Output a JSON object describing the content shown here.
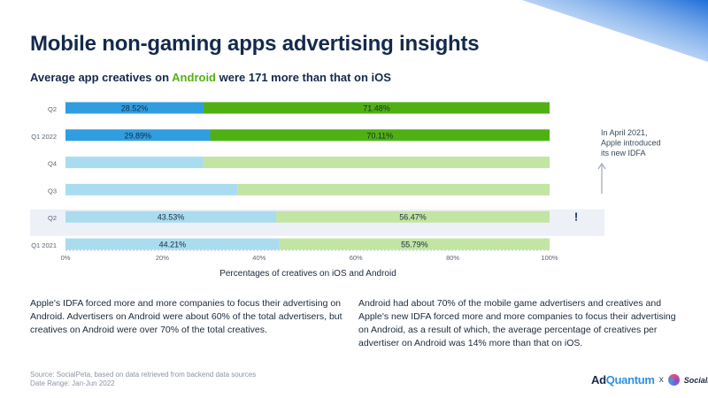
{
  "title": "Mobile non-gaming apps advertising insights",
  "subtitle": {
    "prefix": "Average app creatives on ",
    "accent": "Android",
    "suffix": " were 171 more than that on iOS"
  },
  "colors": {
    "ios_dark": "#2f9ee0",
    "android_dark": "#4fb012",
    "ios_light": "#aadcf0",
    "android_light": "#c2e5a3",
    "highlight_band": "#eef0f8",
    "corner_gradient": [
      "#1f6fd8",
      "#ffffff"
    ]
  },
  "chart_data": {
    "type": "bar",
    "orientation": "horizontal",
    "stacked": true,
    "categories": [
      "Q2",
      "Q1 2022",
      "Q4",
      "Q3",
      "Q2",
      "Q1 2021"
    ],
    "series": [
      {
        "values": [
          28.52,
          29.89,
          28.5,
          35.5,
          43.53,
          44.21
        ],
        "labels": [
          "28.52%",
          "29.89%",
          "",
          "",
          "43.53%",
          "44.21%"
        ]
      },
      {
        "values": [
          71.48,
          70.11,
          71.5,
          64.5,
          56.47,
          55.79
        ],
        "labels": [
          "71.48%",
          "70.11%",
          "",
          "",
          "56.47%",
          "55.79%"
        ]
      }
    ],
    "highlighted_rows": [
      0,
      1
    ],
    "shaded_row": 4,
    "xlabel": "Percentages of creatives on iOS and Android",
    "xlim": [
      0,
      100
    ],
    "xticks": [
      "0%",
      "20%",
      "40%",
      "60%",
      "80%",
      "100%"
    ],
    "grid": false,
    "annotation": {
      "lines": [
        "In April 2021,",
        "Apple introduced",
        "its new IDFA"
      ],
      "marker": "!"
    }
  },
  "paragraphs": {
    "left": "Apple's IDFA forced more and more companies to focus their advertising on Android. Advertisers on Android were about 60% of the total advertisers, but creatives on Android were over 70% of the total creatives.",
    "right": "Android had about 70% of the mobile game advertisers and creatives and Apple's new IDFA forced more and more companies to focus their advertising on Android, as a result of which, the average percentage of creatives per advertiser on Android was 14% more than that on iOS."
  },
  "source": {
    "line1": "Source: SocialPeta, based on data retrieved from backend data sources",
    "line2": "Date Range: Jan-Jun 2022"
  },
  "logos": {
    "adquantum_ad": "Ad",
    "adquantum_q": "Quantum",
    "separator": "x",
    "socialpeta": "SocialPeta"
  }
}
